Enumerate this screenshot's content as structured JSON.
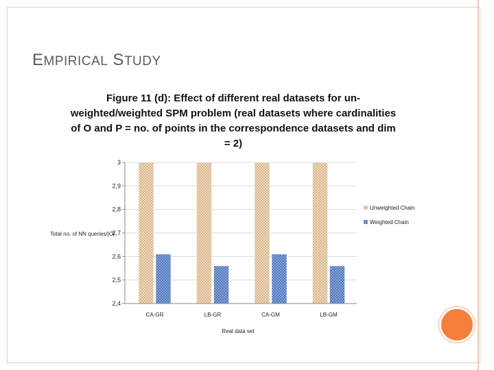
{
  "slide": {
    "title_first": "E",
    "title_small1": "MPIRICAL",
    "title_mid": " S",
    "title_small2": "TUDY"
  },
  "colors": {
    "unweighted": "#e8c9a3",
    "weighted": "#5f86c8",
    "accent_circle": "#f5803e",
    "frame": "#f2c9b4"
  },
  "chart_data": {
    "type": "bar",
    "title": "Figure 11 (d): Effect of different real datasets for un-weighted/weighted SPM problem (real datasets where cardinalities of O and P = no. of points in the correspondence datasets and dim = 2)",
    "categories": [
      "CA-GR",
      "LB-GR",
      "CA-GM",
      "LB-GM"
    ],
    "series": [
      {
        "name": "Unweighted Chain",
        "values": [
          3,
          3,
          3,
          3
        ]
      },
      {
        "name": "Weighted Chain",
        "values": [
          2.61,
          2.56,
          2.61,
          2.56
        ]
      }
    ],
    "y_ticks": [
      "2,4",
      "2,5",
      "2,6",
      "2,7",
      "2,8",
      "2,9",
      "3"
    ],
    "ylim": [
      2.4,
      3
    ],
    "xlabel": "Real data set",
    "ylabel": "Total no. of NN queries/|O|",
    "legend_position": "right",
    "grid": true
  }
}
